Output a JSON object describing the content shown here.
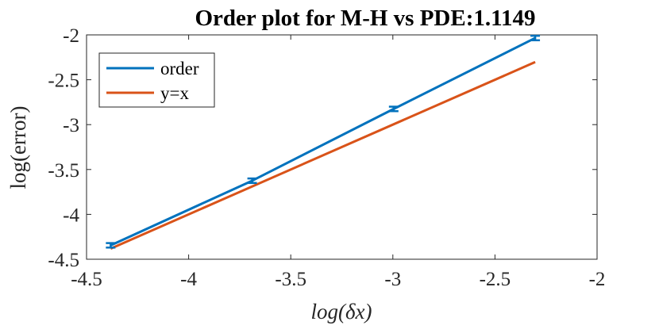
{
  "chart_data": {
    "type": "line",
    "title": "Order plot for M-H vs PDE:1.1149",
    "xlabel": "log(δx)",
    "ylabel": "log(error)",
    "xlim": [
      -4.5,
      -2
    ],
    "ylim": [
      -4.5,
      -2
    ],
    "xticks": [
      "-4.5",
      "-4",
      "-3.5",
      "-3",
      "-2.5",
      "-2"
    ],
    "yticks": [
      "-2",
      "-2.5",
      "-3",
      "-3.5",
      "-4",
      "-4.5"
    ],
    "grid": false,
    "legend_position": "top-left",
    "series": [
      {
        "name": "order",
        "color": "#0072BD",
        "x": [
          -4.382,
          -3.689,
          -2.996,
          -2.303
        ],
        "y": [
          -4.345,
          -3.625,
          -2.825,
          -2.035
        ],
        "error_bars": [
          0.025,
          0.025,
          0.025,
          0.025
        ]
      },
      {
        "name": "y=x",
        "color": "#D95319",
        "x": [
          -4.382,
          -2.303
        ],
        "y": [
          -4.382,
          -2.303
        ]
      }
    ]
  }
}
